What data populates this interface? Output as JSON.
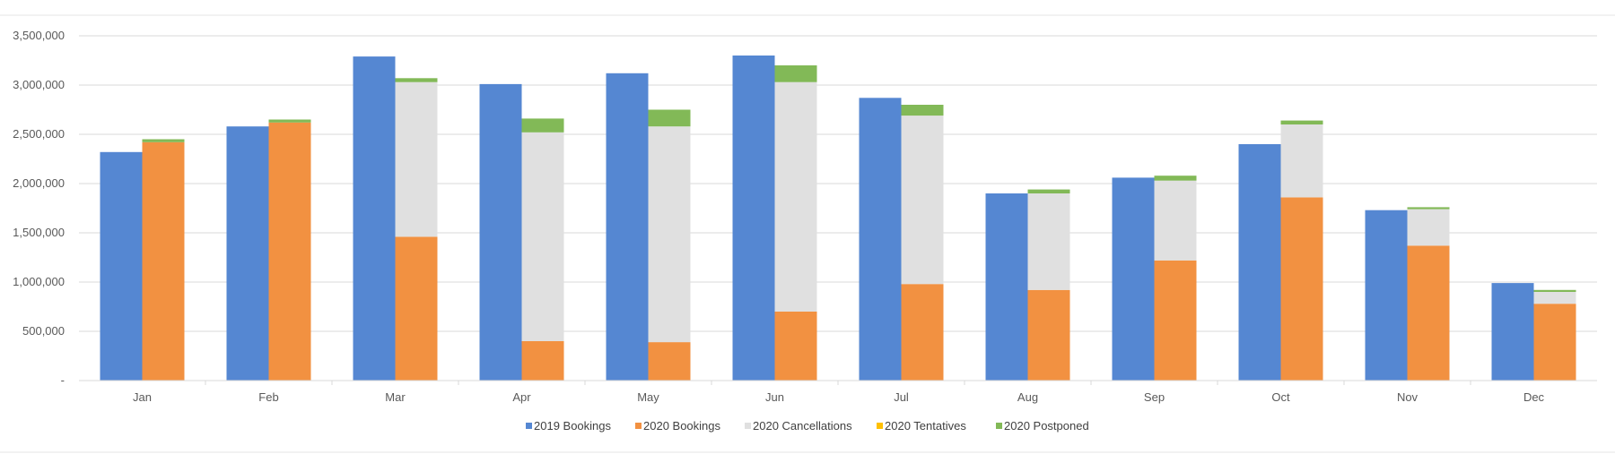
{
  "chart_data": {
    "type": "bar",
    "categories": [
      "Jan",
      "Feb",
      "Mar",
      "Apr",
      "May",
      "Jun",
      "Jul",
      "Aug",
      "Sep",
      "Oct",
      "Nov",
      "Dec"
    ],
    "ylim": [
      0,
      3500000
    ],
    "y_ticks": [
      {
        "value": 0,
        "label": "-"
      },
      {
        "value": 500000,
        "label": "500,000"
      },
      {
        "value": 1000000,
        "label": "1,000,000"
      },
      {
        "value": 1500000,
        "label": "1,500,000"
      },
      {
        "value": 2000000,
        "label": "2,000,000"
      },
      {
        "value": 2500000,
        "label": "2,500,000"
      },
      {
        "value": 3000000,
        "label": "3,000,000"
      },
      {
        "value": 3500000,
        "label": "3,500,000"
      }
    ],
    "grid": true,
    "legend_position": "bottom",
    "series": [
      {
        "name": "2019 Bookings",
        "color": "#5587d2",
        "stack": "2019",
        "values": [
          2320000,
          2580000,
          3290000,
          3010000,
          3120000,
          3300000,
          2870000,
          1900000,
          2060000,
          2400000,
          1730000,
          990000
        ]
      },
      {
        "name": "2020 Bookings",
        "color": "#f29141",
        "stack": "2020",
        "values": [
          2420000,
          2620000,
          1460000,
          400000,
          390000,
          700000,
          980000,
          920000,
          1220000,
          1860000,
          1370000,
          780000
        ]
      },
      {
        "name": "2020 Cancellations",
        "color": "#e0e0e0",
        "stack": "2020",
        "values": [
          0,
          0,
          1570000,
          2120000,
          2190000,
          2330000,
          1710000,
          980000,
          810000,
          740000,
          370000,
          120000
        ]
      },
      {
        "name": "2020 Tentatives",
        "color": "#ffc000",
        "stack": "2020",
        "values": [
          0,
          0,
          0,
          0,
          0,
          0,
          0,
          0,
          0,
          0,
          0,
          0
        ]
      },
      {
        "name": "2020 Postponed",
        "color": "#82b957",
        "stack": "2020",
        "values": [
          30000,
          30000,
          40000,
          140000,
          170000,
          170000,
          110000,
          40000,
          50000,
          40000,
          20000,
          20000
        ]
      }
    ]
  }
}
